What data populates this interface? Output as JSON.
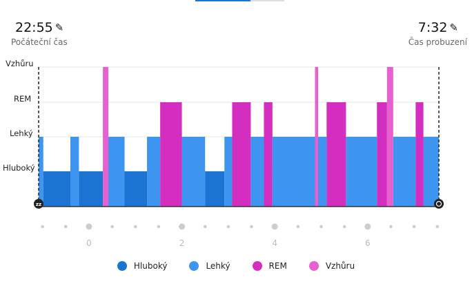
{
  "header": {
    "start_time": "22:55",
    "start_label": "Počáteční čas",
    "end_time": "7:32",
    "end_label": "Čas probuzení"
  },
  "chart_data": {
    "type": "hypnogram",
    "xlabel": "",
    "ylabel": "",
    "x_unit": "minutes since start",
    "total_minutes": 517,
    "stages": [
      "Hluboký",
      "Lehký",
      "REM",
      "Vzhůru"
    ],
    "colors": {
      "Hluboký": "#1b74d2",
      "Lehký": "#3d95ef",
      "REM": "#d42ec0",
      "Vzhůru": "#e85fcf"
    },
    "x_ticks": [
      "0",
      "2",
      "4",
      "6"
    ],
    "x_tick_minutes": [
      65,
      185,
      305,
      425
    ],
    "segments": [
      {
        "start": 0,
        "end": 6,
        "stage": "Lehký"
      },
      {
        "start": 6,
        "end": 41,
        "stage": "Hluboký"
      },
      {
        "start": 41,
        "end": 52,
        "stage": "Lehký"
      },
      {
        "start": 52,
        "end": 83,
        "stage": "Hluboký"
      },
      {
        "start": 83,
        "end": 90,
        "stage": "Vzhůru"
      },
      {
        "start": 90,
        "end": 111,
        "stage": "Lehký"
      },
      {
        "start": 111,
        "end": 140,
        "stage": "Hluboký"
      },
      {
        "start": 140,
        "end": 157,
        "stage": "Lehký"
      },
      {
        "start": 157,
        "end": 185,
        "stage": "REM"
      },
      {
        "start": 185,
        "end": 215,
        "stage": "Lehký"
      },
      {
        "start": 215,
        "end": 240,
        "stage": "Hluboký"
      },
      {
        "start": 240,
        "end": 250,
        "stage": "Lehký"
      },
      {
        "start": 250,
        "end": 274,
        "stage": "REM"
      },
      {
        "start": 274,
        "end": 291,
        "stage": "Lehký"
      },
      {
        "start": 291,
        "end": 302,
        "stage": "REM"
      },
      {
        "start": 302,
        "end": 357,
        "stage": "Lehký"
      },
      {
        "start": 357,
        "end": 361,
        "stage": "Vzhůru"
      },
      {
        "start": 361,
        "end": 372,
        "stage": "Lehký"
      },
      {
        "start": 372,
        "end": 397,
        "stage": "REM"
      },
      {
        "start": 397,
        "end": 437,
        "stage": "Lehký"
      },
      {
        "start": 437,
        "end": 450,
        "stage": "REM"
      },
      {
        "start": 450,
        "end": 458,
        "stage": "Vzhůru"
      },
      {
        "start": 458,
        "end": 487,
        "stage": "Lehký"
      },
      {
        "start": 487,
        "end": 497,
        "stage": "REM"
      },
      {
        "start": 497,
        "end": 517,
        "stage": "Lehký"
      }
    ],
    "legend": [
      "Hluboký",
      "Lehký",
      "REM",
      "Vzhůru"
    ],
    "legend_position": "bottom"
  }
}
